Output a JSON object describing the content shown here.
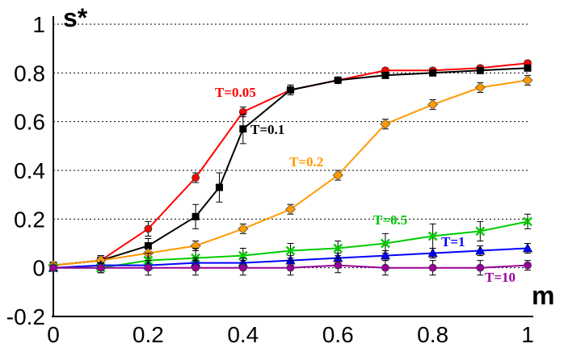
{
  "chart_data": {
    "type": "line",
    "title": "",
    "xlabel": "m",
    "ylabel": "s*",
    "xlim": [
      0,
      1
    ],
    "ylim": [
      -0.2,
      1
    ],
    "xticks": [
      0,
      0.2,
      0.4,
      0.6,
      0.8,
      1
    ],
    "xtick_labels": [
      "0",
      "0.2",
      "0.4",
      "0.6",
      "0.8",
      "1"
    ],
    "yticks": [
      -0.2,
      0,
      0.2,
      0.4,
      0.6,
      0.8,
      1
    ],
    "ytick_labels": [
      "-0.2",
      "0",
      "0.2",
      "0.4",
      "0.6",
      "0.8",
      "1"
    ],
    "grid": "horizontal dotted",
    "series": [
      {
        "name": "T=0.05",
        "color": "#ff0000",
        "marker": "circle",
        "x": [
          0,
          0.1,
          0.2,
          0.3,
          0.4,
          0.5,
          0.6,
          0.7,
          0.8,
          0.9,
          1
        ],
        "y": [
          0.01,
          0.03,
          0.16,
          0.37,
          0.64,
          0.73,
          0.77,
          0.81,
          0.81,
          0.82,
          0.84
        ],
        "err": [
          0.01,
          0.02,
          0.03,
          0.02,
          0.02,
          0.02,
          0.01,
          0.01,
          0.01,
          0.01,
          0.01
        ]
      },
      {
        "name": "T=0.1",
        "color": "#000000",
        "marker": "square",
        "x": [
          0,
          0.1,
          0.2,
          0.3,
          0.35,
          0.4,
          0.5,
          0.6,
          0.7,
          0.8,
          0.9,
          1
        ],
        "y": [
          0.01,
          0.03,
          0.09,
          0.21,
          0.33,
          0.57,
          0.73,
          0.77,
          0.79,
          0.8,
          0.81,
          0.82
        ],
        "err": [
          0.01,
          0.02,
          0.03,
          0.05,
          0.06,
          0.06,
          0.02,
          0.01,
          0.01,
          0.01,
          0.01,
          0.01
        ]
      },
      {
        "name": "T=0.2",
        "color": "#ff9900",
        "marker": "diamond",
        "x": [
          0,
          0.1,
          0.2,
          0.3,
          0.4,
          0.5,
          0.6,
          0.7,
          0.8,
          0.9,
          1
        ],
        "y": [
          0.01,
          0.03,
          0.06,
          0.09,
          0.16,
          0.24,
          0.38,
          0.59,
          0.67,
          0.74,
          0.77
        ],
        "err": [
          0.01,
          0.02,
          0.02,
          0.02,
          0.02,
          0.02,
          0.02,
          0.02,
          0.02,
          0.02,
          0.02
        ]
      },
      {
        "name": "T=0.5",
        "color": "#00cc00",
        "marker": "x",
        "x": [
          0,
          0.1,
          0.2,
          0.3,
          0.4,
          0.5,
          0.6,
          0.7,
          0.8,
          0.9,
          1
        ],
        "y": [
          0.0,
          0.0,
          0.03,
          0.04,
          0.05,
          0.07,
          0.08,
          0.1,
          0.13,
          0.15,
          0.19
        ],
        "err": [
          0.01,
          0.02,
          0.03,
          0.04,
          0.03,
          0.03,
          0.03,
          0.04,
          0.05,
          0.04,
          0.03
        ]
      },
      {
        "name": "T=1",
        "color": "#0000ff",
        "marker": "triangle",
        "x": [
          0,
          0.1,
          0.2,
          0.3,
          0.4,
          0.5,
          0.6,
          0.7,
          0.8,
          0.9,
          1
        ],
        "y": [
          0.0,
          0.01,
          0.01,
          0.02,
          0.02,
          0.03,
          0.04,
          0.05,
          0.06,
          0.07,
          0.08
        ],
        "err": [
          0.01,
          0.01,
          0.02,
          0.02,
          0.02,
          0.02,
          0.02,
          0.02,
          0.02,
          0.02,
          0.02
        ]
      },
      {
        "name": "T=10",
        "color": "#990099",
        "marker": "circle",
        "x": [
          0,
          0.1,
          0.2,
          0.3,
          0.4,
          0.5,
          0.6,
          0.7,
          0.8,
          0.9,
          1
        ],
        "y": [
          0.0,
          0.0,
          0.0,
          0.0,
          0.0,
          0.0,
          0.01,
          0.0,
          0.0,
          0.0,
          0.01
        ],
        "err": [
          0.01,
          0.02,
          0.03,
          0.03,
          0.03,
          0.03,
          0.03,
          0.03,
          0.03,
          0.03,
          0.02
        ]
      }
    ]
  }
}
